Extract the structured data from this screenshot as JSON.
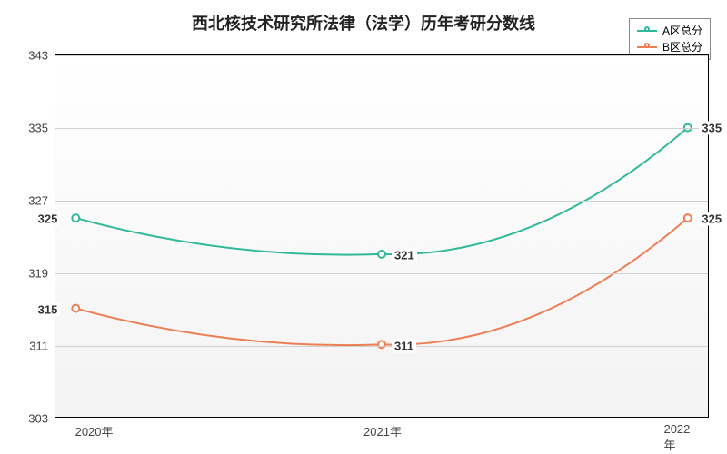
{
  "chart": {
    "type": "line",
    "title": "西北核技术研究所法律（法学）历年考研分数线",
    "title_fontsize": 18,
    "title_color": "#222222",
    "background_top": "#ffffff",
    "background_bottom": "#f3f3f3",
    "grid_color": "#cfcfcf",
    "border_color": "#000000",
    "xlabels": [
      "2020年",
      "2021年",
      "2022年"
    ],
    "xpositions_pct": [
      3,
      50,
      97
    ],
    "ymin": 303,
    "ymax": 343,
    "ytick_step": 8,
    "yticks": [
      303,
      311,
      319,
      327,
      335,
      343
    ],
    "label_fontsize": 13,
    "line_width": 2,
    "series": [
      {
        "name": "A区总分",
        "color": "#2fb99a",
        "values": [
          325,
          321,
          335
        ],
        "label_sides": [
          "left",
          "right",
          "right"
        ]
      },
      {
        "name": "B区总分",
        "color": "#ed7d52",
        "values": [
          315,
          311,
          325
        ],
        "label_sides": [
          "left",
          "right",
          "right"
        ]
      }
    ]
  }
}
